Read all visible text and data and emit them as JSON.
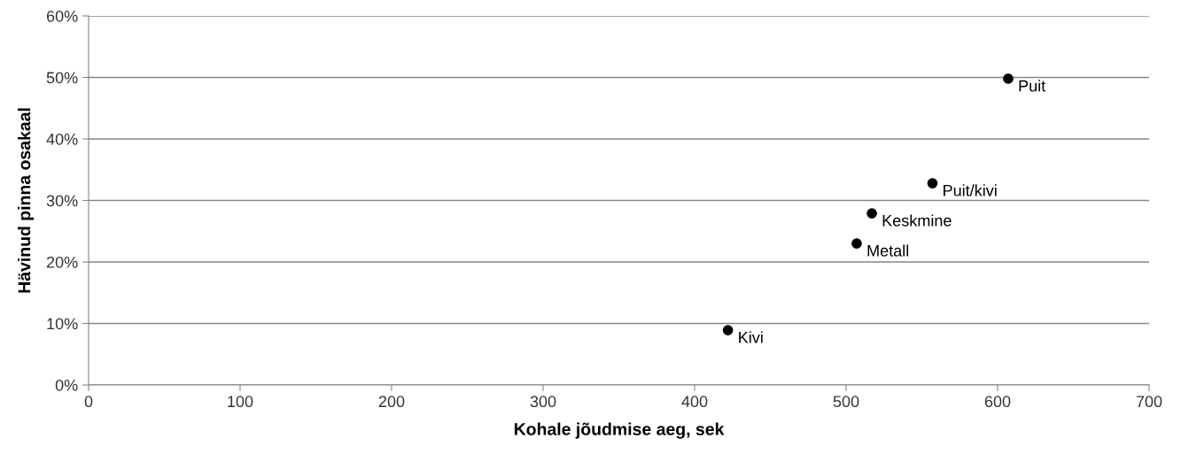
{
  "chart_data": {
    "type": "scatter",
    "xlabel": "Kohale jõudmise aeg, sek",
    "ylabel": "Hävinud pinna osakaal",
    "x": [
      607,
      557,
      517,
      507,
      422
    ],
    "series": [
      {
        "color": "#000000",
        "values": [
          49.8,
          32.8,
          27.9,
          23.0,
          8.9
        ]
      }
    ],
    "annotations": [
      {
        "text": "Puit",
        "x": 607,
        "y": 49.8
      },
      {
        "text": "Puit/kivi",
        "x": 557,
        "y": 32.8
      },
      {
        "text": "Keskmine",
        "x": 517,
        "y": 27.9
      },
      {
        "text": "Metall",
        "x": 507,
        "y": 23.0
      },
      {
        "text": "Kivi",
        "x": 422,
        "y": 8.9
      }
    ],
    "xlim": [
      0,
      700
    ],
    "xticks": [
      0,
      100,
      200,
      300,
      400,
      500,
      600,
      700
    ],
    "ylim": [
      0,
      60
    ],
    "yticks": [
      {
        "value": 0,
        "label": "0%"
      },
      {
        "value": 10,
        "label": "10%"
      },
      {
        "value": 20,
        "label": "20%"
      },
      {
        "value": 30,
        "label": "30%"
      },
      {
        "value": 40,
        "label": "40%"
      },
      {
        "value": 50,
        "label": "50%"
      },
      {
        "value": 60,
        "label": "60%"
      }
    ],
    "grid": "y",
    "marker": "circle"
  }
}
